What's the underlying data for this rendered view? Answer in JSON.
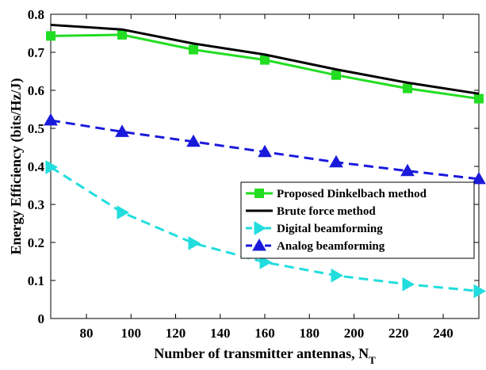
{
  "chart_data": {
    "type": "line",
    "xlabel": "Number of transmitter antennas, N",
    "xlabel_subscript": "T",
    "ylabel": "Energy Efficiency (bits/Hz/J)",
    "xlim": [
      64,
      256
    ],
    "ylim": [
      0,
      0.8
    ],
    "xticks": [
      80,
      100,
      120,
      140,
      160,
      180,
      200,
      220,
      240
    ],
    "yticks": [
      0,
      0.1,
      0.2,
      0.3,
      0.4,
      0.5,
      0.6,
      0.7,
      0.8
    ],
    "ytick_labels": [
      "0",
      "0.1",
      "0.2",
      "0.3",
      "0.4",
      "0.5",
      "0.6",
      "0.7",
      "0.8"
    ],
    "x": [
      64,
      96,
      128,
      160,
      192,
      224,
      256
    ],
    "grid": false,
    "legend_position": "center-right",
    "series": [
      {
        "name": "Proposed Dinkelbach method",
        "values": [
          0.743,
          0.746,
          0.707,
          0.68,
          0.64,
          0.605,
          0.578
        ],
        "color": "#22dd22",
        "dash": "solid",
        "marker": "square",
        "width": 3
      },
      {
        "name": "Brute force method",
        "values": [
          0.772,
          0.76,
          0.723,
          0.694,
          0.655,
          0.62,
          0.591
        ],
        "color": "#000000",
        "dash": "solid",
        "marker": "none",
        "width": 3
      },
      {
        "name": "Digital beamforming",
        "values": [
          0.398,
          0.279,
          0.198,
          0.148,
          0.113,
          0.09,
          0.072
        ],
        "color": "#22dddd",
        "dash": "dashed",
        "marker": "triangle-right",
        "width": 3
      },
      {
        "name": "Analog beamforming",
        "values": [
          0.521,
          0.491,
          0.465,
          0.438,
          0.411,
          0.388,
          0.367
        ],
        "color": "#1a1adb",
        "dash": "dashed",
        "marker": "triangle-up",
        "width": 3
      }
    ]
  }
}
